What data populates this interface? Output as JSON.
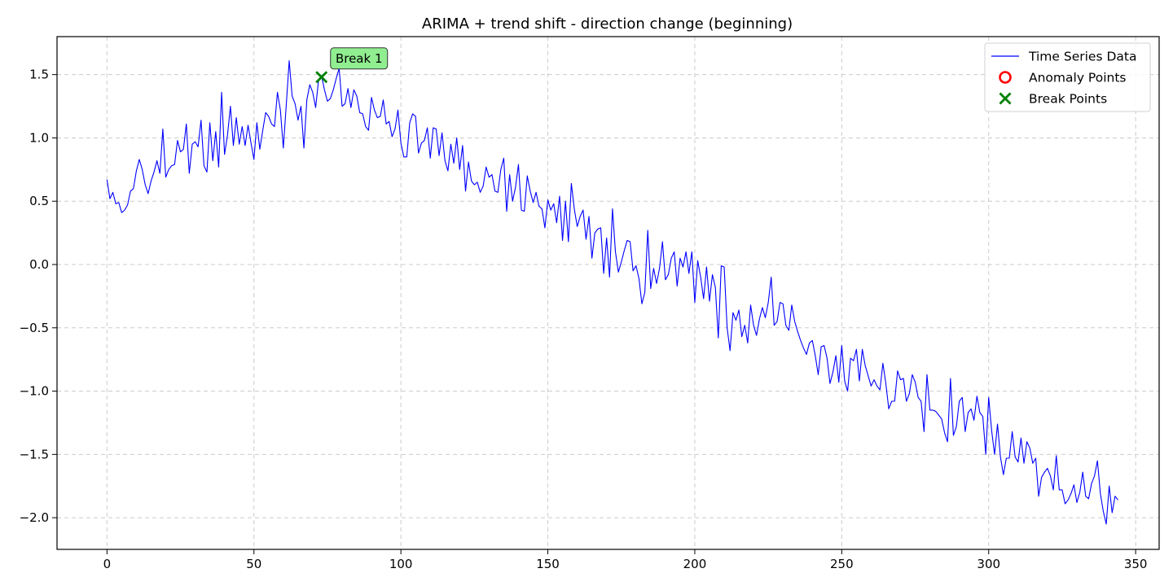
{
  "chart_data": {
    "type": "line",
    "title": "ARIMA + trend shift - direction change (beginning)",
    "xlabel": "",
    "ylabel": "",
    "xlim": [
      -17,
      358
    ],
    "ylim": [
      -2.25,
      1.8
    ],
    "x_ticks": [
      0,
      50,
      100,
      150,
      200,
      250,
      300,
      350
    ],
    "x_tick_labels": [
      "0",
      "50",
      "100",
      "150",
      "200",
      "250",
      "300",
      "350"
    ],
    "y_ticks": [
      1.5,
      1.0,
      0.5,
      0.0,
      -0.5,
      -1.0,
      -1.5,
      -2.0
    ],
    "y_tick_labels": [
      "1.5",
      "1.0",
      "0.5",
      "0.0",
      "−0.5",
      "−1.0",
      "−1.5",
      "−2.0"
    ],
    "grid": true,
    "legend_position": "top-right",
    "legend": [
      {
        "label": "Time Series Data",
        "marker": "line",
        "color": "#0000ff"
      },
      {
        "label": "Anomaly Points",
        "marker": "circle",
        "color": "#ff0000"
      },
      {
        "label": "Break Points",
        "marker": "x",
        "color": "#008000"
      }
    ],
    "series": [
      {
        "name": "Time Series Data",
        "color": "#0000ff",
        "x_start": 0,
        "x_step": 1,
        "values": [
          0.67,
          0.52,
          0.57,
          0.48,
          0.49,
          0.41,
          0.43,
          0.47,
          0.58,
          0.6,
          0.74,
          0.83,
          0.75,
          0.63,
          0.56,
          0.66,
          0.73,
          0.82,
          0.72,
          1.07,
          0.69,
          0.75,
          0.78,
          0.79,
          0.98,
          0.89,
          0.91,
          1.11,
          0.72,
          0.95,
          0.97,
          0.93,
          1.14,
          0.78,
          0.73,
          1.12,
          0.82,
          1.05,
          0.77,
          1.36,
          0.87,
          1.02,
          1.25,
          0.94,
          1.16,
          0.95,
          1.09,
          0.94,
          1.1,
          0.96,
          0.83,
          1.12,
          0.91,
          1.06,
          1.2,
          1.17,
          1.11,
          1.09,
          1.36,
          1.22,
          0.92,
          1.26,
          1.61,
          1.33,
          1.27,
          1.14,
          1.25,
          0.92,
          1.3,
          1.42,
          1.36,
          1.24,
          1.46,
          1.49,
          1.38,
          1.29,
          1.31,
          1.38,
          1.47,
          1.55,
          1.25,
          1.27,
          1.39,
          1.24,
          1.38,
          1.33,
          1.2,
          1.19,
          1.09,
          1.06,
          1.32,
          1.22,
          1.16,
          1.17,
          1.3,
          1.11,
          1.13,
          1.01,
          1.07,
          1.22,
          0.96,
          0.85,
          0.85,
          1.12,
          1.19,
          1.17,
          0.88,
          0.96,
          0.98,
          1.08,
          0.84,
          1.08,
          1.07,
          0.86,
          1.04,
          0.82,
          0.74,
          0.95,
          0.8,
          1.0,
          0.75,
          0.94,
          0.58,
          0.81,
          0.66,
          0.63,
          0.65,
          0.57,
          0.62,
          0.77,
          0.69,
          0.71,
          0.58,
          0.57,
          0.75,
          0.84,
          0.42,
          0.71,
          0.5,
          0.61,
          0.79,
          0.43,
          0.42,
          0.7,
          0.58,
          0.49,
          0.57,
          0.46,
          0.44,
          0.29,
          0.51,
          0.43,
          0.48,
          0.33,
          0.54,
          0.19,
          0.5,
          0.18,
          0.64,
          0.44,
          0.3,
          0.38,
          0.43,
          0.2,
          0.38,
          0.05,
          0.25,
          0.28,
          0.29,
          -0.07,
          0.21,
          -0.1,
          0.44,
          0.1,
          -0.06,
          0.02,
          0.11,
          0.19,
          0.18,
          -0.05,
          -0.01,
          -0.11,
          -0.31,
          -0.22,
          0.27,
          -0.19,
          -0.03,
          -0.15,
          -0.03,
          0.18,
          -0.12,
          -0.08,
          0.05,
          0.1,
          -0.17,
          0.05,
          -0.02,
          0.1,
          -0.07,
          0.1,
          -0.3,
          0.03,
          -0.1,
          -0.27,
          -0.02,
          -0.29,
          -0.08,
          -0.18,
          -0.58,
          -0.01,
          -0.02,
          -0.5,
          -0.68,
          -0.38,
          -0.44,
          -0.36,
          -0.57,
          -0.48,
          -0.62,
          -0.32,
          -0.48,
          -0.56,
          -0.43,
          -0.34,
          -0.42,
          -0.3,
          -0.1,
          -0.48,
          -0.45,
          -0.3,
          -0.31,
          -0.48,
          -0.52,
          -0.32,
          -0.45,
          -0.53,
          -0.6,
          -0.66,
          -0.71,
          -0.62,
          -0.6,
          -0.72,
          -0.87,
          -0.65,
          -0.64,
          -0.74,
          -0.94,
          -0.85,
          -0.72,
          -0.93,
          -0.64,
          -0.92,
          -1.0,
          -0.74,
          -0.76,
          -0.67,
          -0.92,
          -0.67,
          -0.8,
          -0.88,
          -0.96,
          -0.91,
          -0.96,
          -0.99,
          -0.78,
          -0.94,
          -1.14,
          -1.08,
          -1.08,
          -0.84,
          -0.91,
          -0.9,
          -1.08,
          -1.02,
          -0.87,
          -0.93,
          -1.05,
          -1.08,
          -1.32,
          -0.87,
          -1.15,
          -1.15,
          -1.16,
          -1.19,
          -1.22,
          -1.33,
          -1.4,
          -0.9,
          -1.35,
          -1.28,
          -1.08,
          -1.05,
          -1.32,
          -1.17,
          -1.14,
          -1.23,
          -1.04,
          -1.17,
          -1.2,
          -1.5,
          -1.05,
          -1.31,
          -1.5,
          -1.26,
          -1.52,
          -1.66,
          -1.53,
          -1.53,
          -1.32,
          -1.52,
          -1.56,
          -1.37,
          -1.57,
          -1.4,
          -1.45,
          -1.57,
          -1.53,
          -1.83,
          -1.68,
          -1.64,
          -1.61,
          -1.67,
          -1.78,
          -1.51,
          -1.78,
          -1.78,
          -1.89,
          -1.86,
          -1.81,
          -1.74,
          -1.88,
          -1.8,
          -1.64,
          -1.83,
          -1.85,
          -1.73,
          -1.67,
          -1.55,
          -1.81,
          -1.95,
          -2.05,
          -1.75,
          -1.96,
          -1.83,
          -1.86
        ]
      }
    ],
    "break_points": [
      {
        "x": 73,
        "y": 1.48,
        "label": "Break 1"
      }
    ],
    "anomaly_points": []
  },
  "colors": {
    "line": "#0000ff",
    "break_marker": "#008000",
    "anomaly_marker": "#ff0000",
    "annotation_fill": "#90ee90",
    "grid": "#cccccc"
  }
}
